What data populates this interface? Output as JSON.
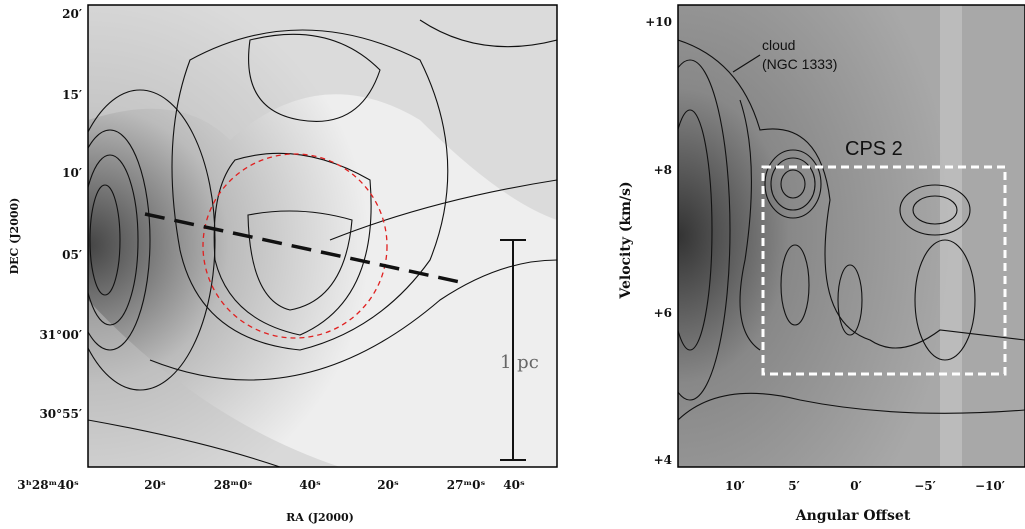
{
  "left_panel": {
    "y_axis_label": "DEC (J2000)",
    "x_axis_label": "RA (J2000)",
    "y_tick_labels": [
      "20′",
      "15′",
      "10′",
      "05′",
      "31°00′",
      "30°55′"
    ],
    "x_tick_labels": [
      "3ʰ28ᵐ40ˢ",
      "20ˢ",
      "28ᵐ0ˢ",
      "40ˢ",
      "20ˢ",
      "27ᵐ0ˢ",
      "40ˢ"
    ],
    "scale_bar_label": "1 pc"
  },
  "right_panel": {
    "y_axis_label": "Velocity (km/s)",
    "x_axis_label": "Angular Offset",
    "y_tick_labels": [
      "+10",
      "+8",
      "+6",
      "+4"
    ],
    "x_tick_labels": [
      "10′",
      "5′",
      "0′",
      "−5′",
      "−10′"
    ],
    "annotations": [
      "cloud",
      "(NGC 1333)",
      "CPS 2"
    ]
  }
}
